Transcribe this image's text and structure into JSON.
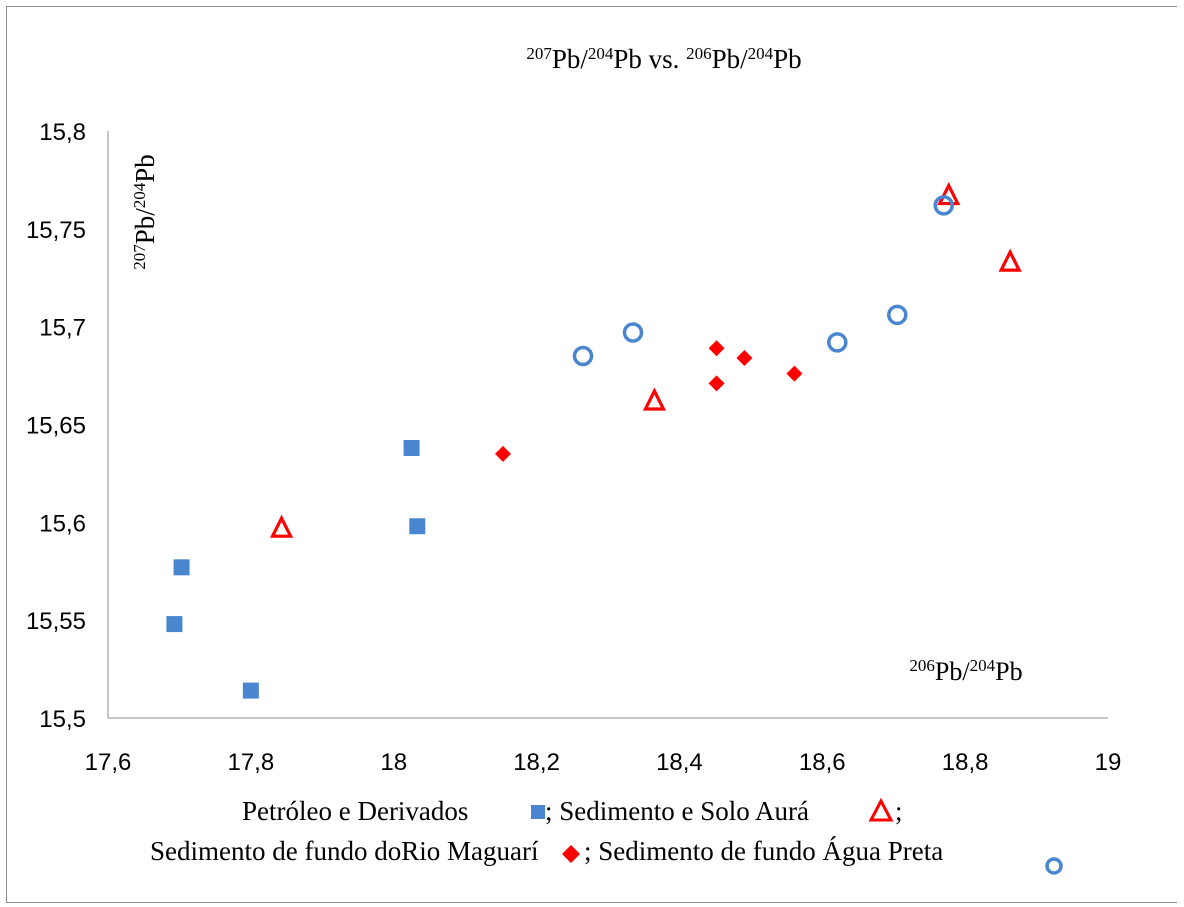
{
  "chart_data": {
    "type": "scatter",
    "title": {
      "sup1": "207",
      "t1": "Pb/",
      "sup2": "204",
      "t2": "Pb vs. ",
      "sup3": "206",
      "t3": "Pb/",
      "sup4": "204",
      "t4": "Pb"
    },
    "ylabel": {
      "sup1": "207",
      "t1": "Pb/",
      "sup2": "204",
      "t2": "Pb"
    },
    "xlabel": {
      "sup1": "206",
      "t1": "Pb/",
      "sup2": "204",
      "t2": "Pb"
    },
    "xlim": [
      17.6,
      19
    ],
    "ylim": [
      15.5,
      15.8
    ],
    "x_ticks": [
      "17,6",
      "17,8",
      "18",
      "18,2",
      "18,4",
      "18,6",
      "18,8",
      "19"
    ],
    "y_ticks": [
      "15,5",
      "15,55",
      "15,6",
      "15,65",
      "15,7",
      "15,75",
      "15,8"
    ],
    "x_tick_values": [
      17.6,
      17.8,
      18.0,
      18.2,
      18.4,
      18.6,
      18.8,
      19.0
    ],
    "y_tick_values": [
      15.5,
      15.55,
      15.6,
      15.65,
      15.7,
      15.75,
      15.8
    ],
    "grid": false,
    "legend_position": "bottom",
    "series": [
      {
        "marker": "square",
        "color": "#4a86d0",
        "points": [
          [
            17.693,
            15.548
          ],
          [
            17.703,
            15.577
          ],
          [
            17.8,
            15.514
          ],
          [
            18.025,
            15.638
          ],
          [
            18.033,
            15.598
          ]
        ]
      },
      {
        "marker": "triangle",
        "color": "#ff0000",
        "points": [
          [
            17.843,
            15.597
          ],
          [
            18.365,
            15.662
          ],
          [
            18.777,
            15.767
          ],
          [
            18.863,
            15.733
          ]
        ]
      },
      {
        "marker": "diamond",
        "color": "#ff0000",
        "points": [
          [
            18.153,
            15.635
          ],
          [
            18.452,
            15.689
          ],
          [
            18.452,
            15.671
          ],
          [
            18.491,
            15.684
          ],
          [
            18.561,
            15.676
          ]
        ]
      },
      {
        "marker": "circle",
        "color": "#4a86d0",
        "points": [
          [
            18.265,
            15.685
          ],
          [
            18.335,
            15.697
          ],
          [
            18.621,
            15.692
          ],
          [
            18.705,
            15.706
          ],
          [
            18.77,
            15.762
          ]
        ]
      }
    ]
  },
  "legend": {
    "line1_a": "Petróleo e Derivados",
    "line1_b": "; Sedimento e Solo Aurá",
    "line1_c": " ;",
    "line2_a": "Sedimento de fundo doRio Maguarí",
    "line2_b": " ; Sedimento de fundo Água Preta"
  }
}
